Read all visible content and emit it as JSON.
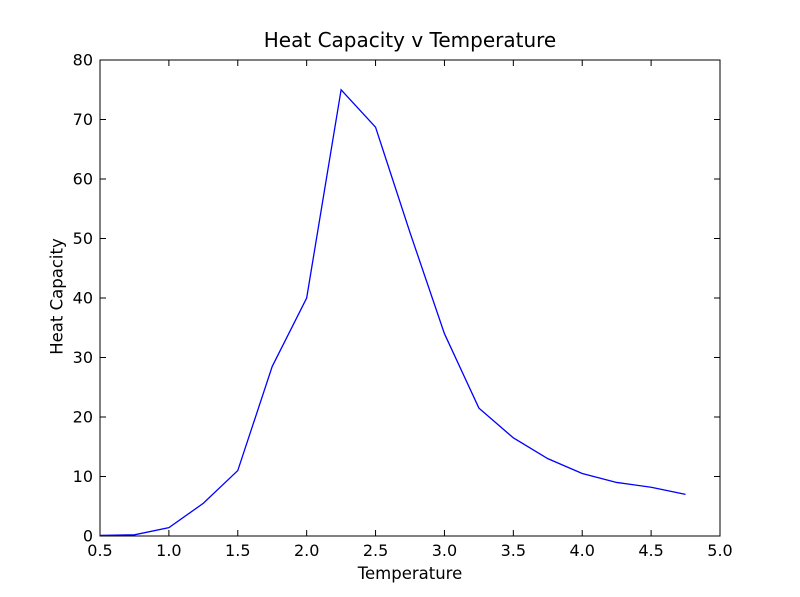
{
  "figure": {
    "background": "#ffffff",
    "text_color": "#000000",
    "axis_color": "#000000"
  },
  "chart_data": {
    "type": "line",
    "title": "Heat Capacity v Temperature",
    "xlabel": "Temperature",
    "ylabel": "Heat Capacity",
    "xlim": [
      0.5,
      5.0
    ],
    "ylim": [
      0,
      80
    ],
    "grid": false,
    "legend": "none",
    "x": [
      0.5,
      0.75,
      1.0,
      1.25,
      1.5,
      1.75,
      2.0,
      2.25,
      2.5,
      2.75,
      3.0,
      3.25,
      3.5,
      3.75,
      4.0,
      4.25,
      4.5,
      4.75
    ],
    "series": [
      {
        "name": "heat-capacity",
        "color": "#0000ff",
        "values": [
          0.1,
          0.2,
          1.4,
          5.5,
          11,
          28.5,
          40,
          75,
          68.7,
          51,
          34,
          21.5,
          16.5,
          13,
          10.5,
          9,
          8.2,
          7
        ]
      }
    ],
    "xticks": [
      0.5,
      1.0,
      1.5,
      2.0,
      2.5,
      3.0,
      3.5,
      4.0,
      4.5,
      5.0
    ],
    "xtick_labels": [
      "0.5",
      "1.0",
      "1.5",
      "2.0",
      "2.5",
      "3.0",
      "3.5",
      "4.0",
      "4.5",
      "5.0"
    ],
    "yticks": [
      0,
      10,
      20,
      30,
      40,
      50,
      60,
      70,
      80
    ],
    "ytick_labels": [
      "0",
      "10",
      "20",
      "30",
      "40",
      "50",
      "60",
      "70",
      "80"
    ]
  }
}
